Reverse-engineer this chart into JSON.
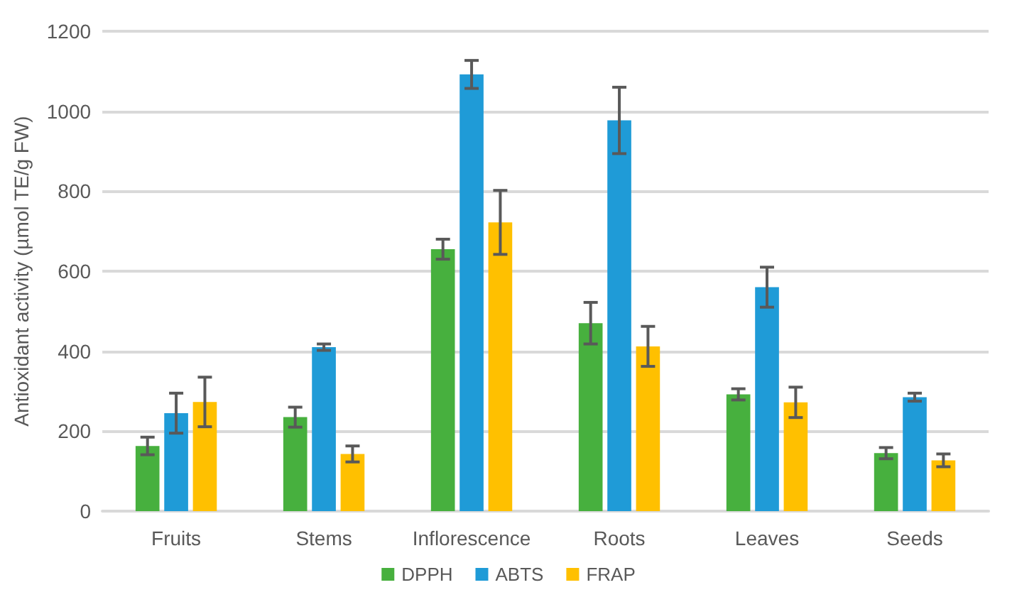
{
  "chart_data": {
    "type": "bar",
    "ylabel": "Antioxidant activity (µmol TE/g FW)",
    "categories": [
      "Fruits",
      "Stems",
      "Inflorescence",
      "Roots",
      "Leaves",
      "Seeds"
    ],
    "series": [
      {
        "name": "DPPH",
        "color": "#47b03e",
        "values": [
          163,
          235,
          655,
          470,
          292,
          145
        ],
        "errors": [
          22,
          25,
          25,
          52,
          14,
          14
        ]
      },
      {
        "name": "ABTS",
        "color": "#1f9bd7",
        "values": [
          245,
          410,
          1092,
          977,
          560,
          285
        ],
        "errors": [
          50,
          8,
          35,
          83,
          50,
          10
        ]
      },
      {
        "name": "FRAP",
        "color": "#ffc000",
        "values": [
          273,
          143,
          722,
          412,
          272,
          127
        ],
        "errors": [
          62,
          20,
          80,
          50,
          38,
          16
        ]
      }
    ],
    "ylim": [
      0,
      1200
    ],
    "yticks": [
      0,
      200,
      400,
      600,
      800,
      1000,
      1200
    ],
    "grid": "y",
    "legend": "bottom"
  }
}
